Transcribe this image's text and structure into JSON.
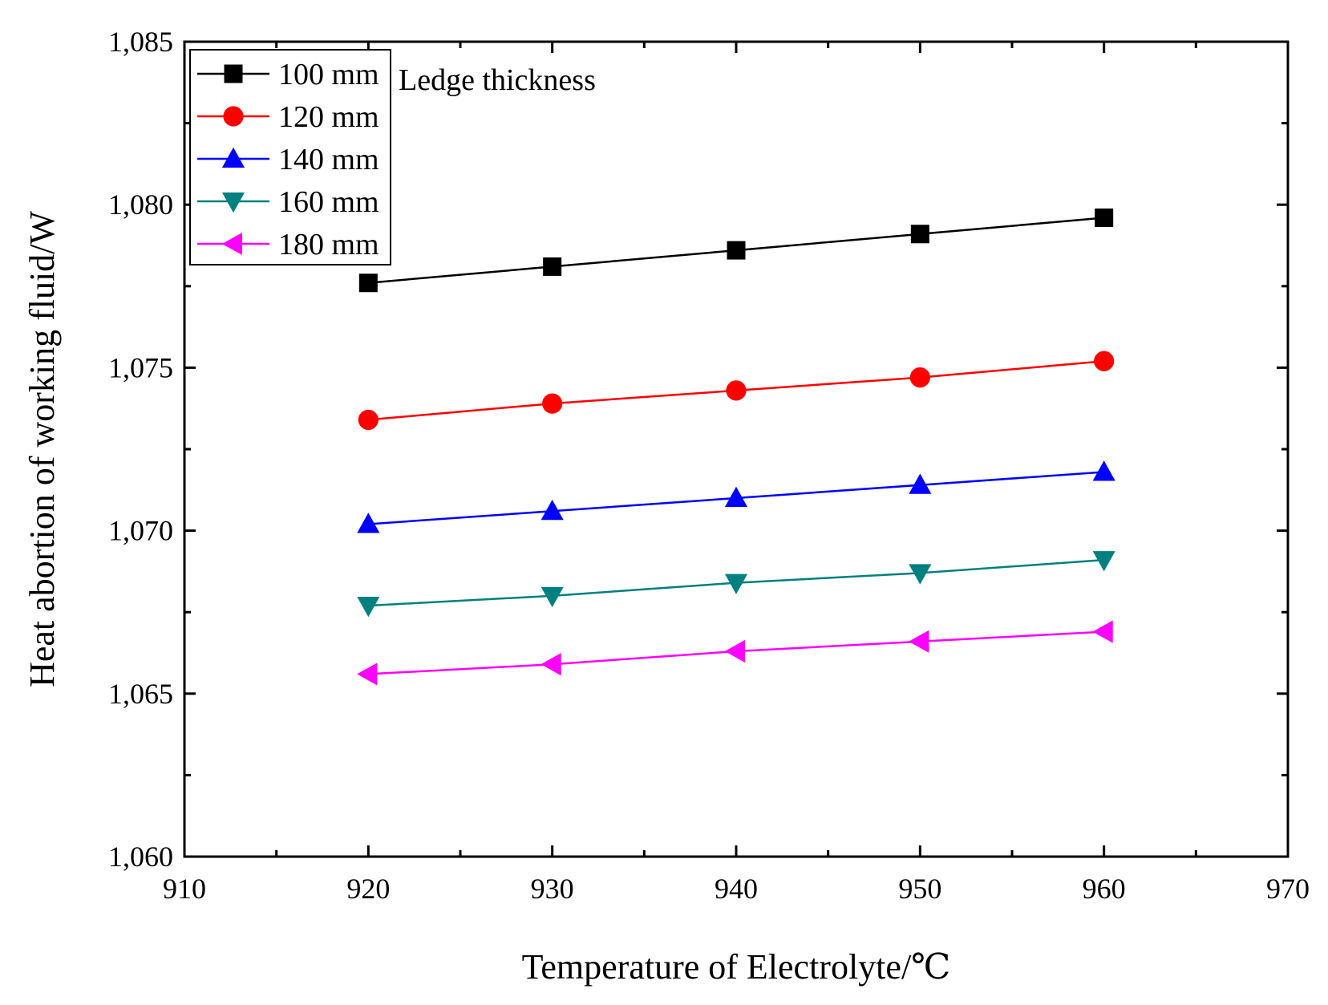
{
  "chart_data": {
    "type": "line",
    "title": "",
    "xlabel": "Temperature of Electrolyte/℃",
    "ylabel": "Heat abortion of working fluid/W",
    "xlim": [
      910,
      970
    ],
    "ylim": [
      1060,
      1085
    ],
    "xticks": [
      910,
      920,
      930,
      940,
      950,
      960,
      970
    ],
    "yticks": [
      1060,
      1065,
      1070,
      1075,
      1080,
      1085
    ],
    "xtick_labels": [
      "910",
      "920",
      "930",
      "940",
      "950",
      "960",
      "970"
    ],
    "ytick_labels": [
      "1,060",
      "1,065",
      "1,070",
      "1,075",
      "1,080",
      "1,085"
    ],
    "legend_title": "Ledge thickness",
    "legend_position": "top-left",
    "x": [
      920,
      930,
      940,
      950,
      960
    ],
    "series": [
      {
        "name": "100  mm",
        "marker": "square",
        "color": "#000000",
        "values": [
          1077.6,
          1078.1,
          1078.6,
          1079.1,
          1079.6
        ]
      },
      {
        "name": "120  mm",
        "marker": "circle",
        "color": "#ff0000",
        "values": [
          1073.4,
          1073.9,
          1074.3,
          1074.7,
          1075.2
        ]
      },
      {
        "name": "140  mm",
        "marker": "triangle-up",
        "color": "#0000ff",
        "values": [
          1070.2,
          1070.6,
          1071.0,
          1071.4,
          1071.8
        ]
      },
      {
        "name": "160  mm",
        "marker": "triangle-down",
        "color": "#008080",
        "values": [
          1067.7,
          1068.0,
          1068.4,
          1068.7,
          1069.1
        ]
      },
      {
        "name": "180  mm",
        "marker": "triangle-left",
        "color": "#ff00ff",
        "values": [
          1065.6,
          1065.9,
          1066.3,
          1066.6,
          1066.9
        ]
      }
    ]
  }
}
